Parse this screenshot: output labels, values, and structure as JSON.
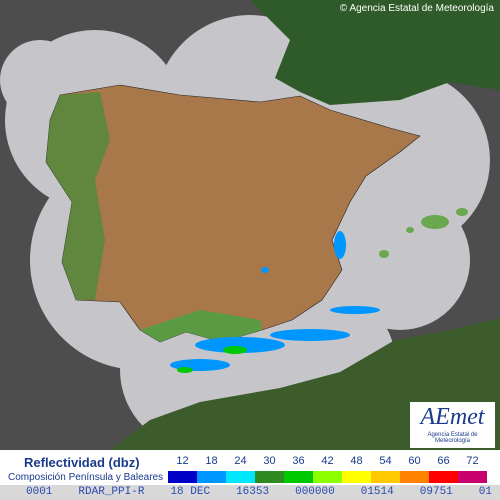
{
  "header": {
    "copyright": "© Agencia Estatal de Meteorología"
  },
  "logo": {
    "title": "AEmet",
    "subtitle": "Agencia Estatal de Meteorología"
  },
  "legend": {
    "title": "Reflectividad (dbz)",
    "subtitle": "Composición Península y Baleares",
    "levels": [
      {
        "value": 12,
        "color": "#0000c8"
      },
      {
        "value": 18,
        "color": "#0096ff"
      },
      {
        "value": 24,
        "color": "#00e6ff"
      },
      {
        "value": 30,
        "color": "#2e8b22"
      },
      {
        "value": 36,
        "color": "#00c800"
      },
      {
        "value": 42,
        "color": "#8cff00"
      },
      {
        "value": 48,
        "color": "#ffff00"
      },
      {
        "value": 54,
        "color": "#ffc800"
      },
      {
        "value": 60,
        "color": "#ff8200"
      },
      {
        "value": 66,
        "color": "#ff0000"
      },
      {
        "value": 72,
        "color": "#c8006e"
      }
    ]
  },
  "status_bar": [
    "0001",
    "RDAR_PPI-R",
    "18 DEC",
    "16353",
    "000000",
    "01514",
    "09751",
    "01"
  ]
}
